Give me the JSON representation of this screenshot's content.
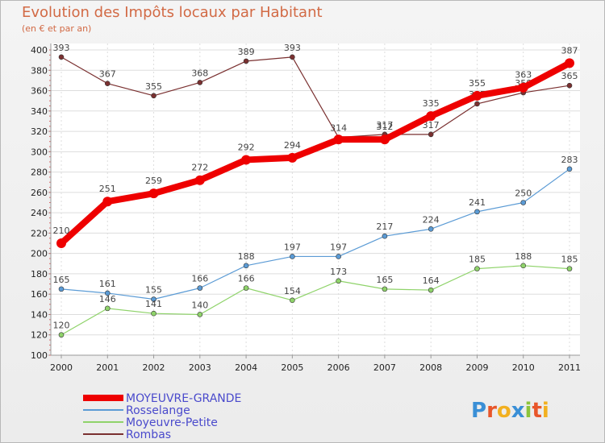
{
  "header": {
    "title": "Evolution des Impôts locaux par Habitant",
    "subtitle": "(en € et par an)"
  },
  "logo": {
    "letters": [
      "P",
      "r",
      "o",
      "x",
      "i",
      "t",
      "i"
    ],
    "colors": [
      "#3a8fd6",
      "#e8562a",
      "#f2b020",
      "#3a8fd6",
      "#8cc43c",
      "#e8562a",
      "#f2b020"
    ]
  },
  "chart_data": {
    "type": "line",
    "title": "Evolution des Impôts locaux par Habitant",
    "subtitle": "(en € et par an)",
    "xlabel": "",
    "ylabel": "",
    "x": [
      "2000",
      "2001",
      "2002",
      "2003",
      "2004",
      "2005",
      "2006",
      "2007",
      "2008",
      "2009",
      "2010",
      "2011"
    ],
    "ylim": [
      100,
      400
    ],
    "yticks": [
      100,
      120,
      140,
      160,
      180,
      200,
      220,
      240,
      260,
      280,
      300,
      320,
      340,
      360,
      380,
      400
    ],
    "grid": true,
    "legend_position": "bottom-left",
    "series": [
      {
        "name": "MOYEUVRE-GRANDE",
        "color": "#ee0000",
        "emphasis": "thick",
        "values": [
          210,
          251,
          259,
          272,
          292,
          294,
          312,
          312,
          335,
          355,
          363,
          387
        ],
        "labels": [
          "210",
          "251",
          "259",
          "272",
          "292",
          "294",
          "",
          "312",
          "335",
          "355",
          "363",
          "387"
        ]
      },
      {
        "name": "Rosselange",
        "color": "#5b9bd5",
        "emphasis": "thin",
        "values": [
          165,
          161,
          155,
          166,
          188,
          197,
          197,
          217,
          224,
          241,
          250,
          283
        ],
        "labels": [
          "165",
          "161",
          "155",
          "166",
          "188",
          "197",
          "197",
          "217",
          "224",
          "241",
          "250",
          "283"
        ]
      },
      {
        "name": "Moyeuvre-Petite",
        "color": "#8fd36a",
        "emphasis": "thin",
        "values": [
          120,
          146,
          141,
          140,
          166,
          154,
          173,
          165,
          164,
          185,
          188,
          185
        ],
        "labels": [
          "120",
          "146",
          "141",
          "140",
          "166",
          "154",
          "173",
          "165",
          "164",
          "185",
          "188",
          "185"
        ]
      },
      {
        "name": "Rombas",
        "color": "#7a3030",
        "emphasis": "thin",
        "values": [
          393,
          367,
          355,
          368,
          389,
          393,
          314,
          317,
          317,
          347,
          358,
          365
        ],
        "labels": [
          "393",
          "367",
          "355",
          "368",
          "389",
          "393",
          "314",
          "317",
          "317",
          "347",
          "358",
          "365"
        ]
      }
    ]
  }
}
